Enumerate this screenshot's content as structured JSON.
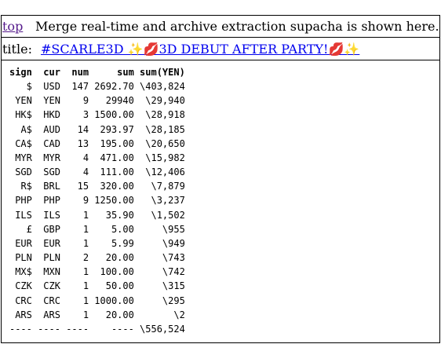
{
  "header": {
    "top_link": "top",
    "description": "Merge real-time and archive extraction supacha is shown here."
  },
  "title": {
    "label": "title:",
    "link": "#SCARLE3D ✨💋3D DEBUT AFTER PARTY!💋✨"
  },
  "table": {
    "columns": [
      "sign",
      "cur",
      "num",
      "sum",
      "sum(YEN)"
    ],
    "rows": [
      [
        "$",
        "USD",
        "147",
        "2692.70",
        "\\403,824"
      ],
      [
        "YEN",
        "YEN",
        "9",
        "29940",
        "\\29,940"
      ],
      [
        "HK$",
        "HKD",
        "3",
        "1500.00",
        "\\28,918"
      ],
      [
        "A$",
        "AUD",
        "14",
        "293.97",
        "\\28,185"
      ],
      [
        "CA$",
        "CAD",
        "13",
        "195.00",
        "\\20,650"
      ],
      [
        "MYR",
        "MYR",
        "4",
        "471.00",
        "\\15,982"
      ],
      [
        "SGD",
        "SGD",
        "4",
        "111.00",
        "\\12,406"
      ],
      [
        "R$",
        "BRL",
        "15",
        "320.00",
        "\\7,879"
      ],
      [
        "PHP",
        "PHP",
        "9",
        "1250.00",
        "\\3,237"
      ],
      [
        "ILS",
        "ILS",
        "1",
        "35.90",
        "\\1,502"
      ],
      [
        "£",
        "GBP",
        "1",
        "5.00",
        "\\955"
      ],
      [
        "EUR",
        "EUR",
        "1",
        "5.99",
        "\\949"
      ],
      [
        "PLN",
        "PLN",
        "2",
        "20.00",
        "\\743"
      ],
      [
        "MX$",
        "MXN",
        "1",
        "100.00",
        "\\742"
      ],
      [
        "CZK",
        "CZK",
        "1",
        "50.00",
        "\\315"
      ],
      [
        "CRC",
        "CRC",
        "1",
        "1000.00",
        "\\295"
      ],
      [
        "ARS",
        "ARS",
        "1",
        "20.00",
        "\\2"
      ]
    ],
    "footer": [
      "----",
      "----",
      "----",
      "----",
      "\\556,524"
    ]
  }
}
